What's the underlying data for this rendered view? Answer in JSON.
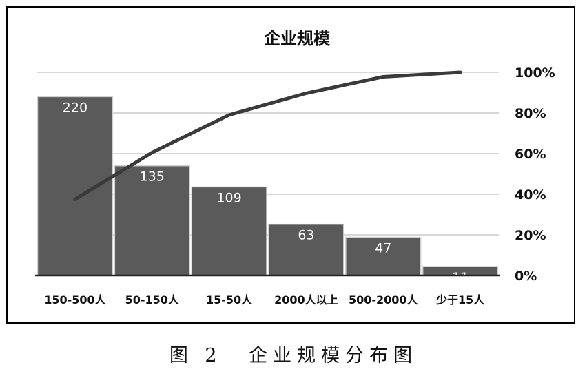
{
  "chart_data": {
    "type": "bar",
    "title": "企业规模",
    "categories": [
      "150-500人",
      "50-150人",
      "15-50人",
      "2000人以上",
      "500-2000人",
      "少于15人"
    ],
    "series": [
      {
        "values": [
          220,
          135,
          109,
          63,
          47,
          11
        ]
      }
    ],
    "line_series": {
      "axis": "right",
      "values": [
        37.5,
        60.5,
        79.0,
        89.7,
        97.8,
        100.0
      ]
    },
    "y_left_lim": [
      0,
      250
    ],
    "y_right_lim": [
      0,
      100
    ],
    "y_right_ticks": [
      "0%",
      "20%",
      "40%",
      "60%",
      "80%",
      "100%"
    ],
    "grid": true,
    "legend": "none",
    "colors": {
      "bar": "#5a5a5a",
      "bar_edge": "#cfcfcf",
      "line": "#3a3a3a",
      "grid": "#bfbfbf",
      "label": "#ffffff"
    }
  },
  "caption": {
    "figure_number": "图 2",
    "text": "企业规模分布图"
  }
}
